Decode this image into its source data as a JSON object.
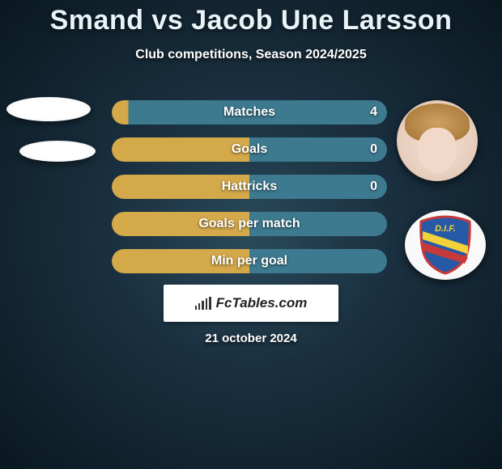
{
  "header": {
    "title": "Smand vs Jacob Une Larsson",
    "subtitle": "Club competitions, Season 2024/2025"
  },
  "stats": [
    {
      "label": "Matches",
      "value_right": "4",
      "gradient_from": "#d4a94a",
      "gradient_to": "#3d7a8f",
      "split": 6
    },
    {
      "label": "Goals",
      "value_right": "0",
      "gradient_from": "#d4a94a",
      "gradient_to": "#3d7a8f",
      "split": 50
    },
    {
      "label": "Hattricks",
      "value_right": "0",
      "gradient_from": "#d4a94a",
      "gradient_to": "#3d7a8f",
      "split": 50
    },
    {
      "label": "Goals per match",
      "value_right": "",
      "gradient_from": "#d4a94a",
      "gradient_to": "#3d7a8f",
      "split": 50
    },
    {
      "label": "Min per goal",
      "value_right": "",
      "gradient_from": "#d4a94a",
      "gradient_to": "#3d7a8f",
      "split": 50
    }
  ],
  "player_left": {
    "name": "Smand"
  },
  "player_right": {
    "name": "Jacob Une Larsson",
    "club_initials": "D.I.F.",
    "club_shield_fill": "#2659a6",
    "club_shield_stripe1": "#f2d23a",
    "club_shield_stripe2": "#c83a3a",
    "club_shield_border": "#c83a3a"
  },
  "footer": {
    "watermark": "FcTables.com",
    "date": "21 october 2024"
  },
  "colors": {
    "bg_center": "#2a4a5a",
    "bg_edge": "#0a1820",
    "title_color": "#e8f4f8"
  }
}
